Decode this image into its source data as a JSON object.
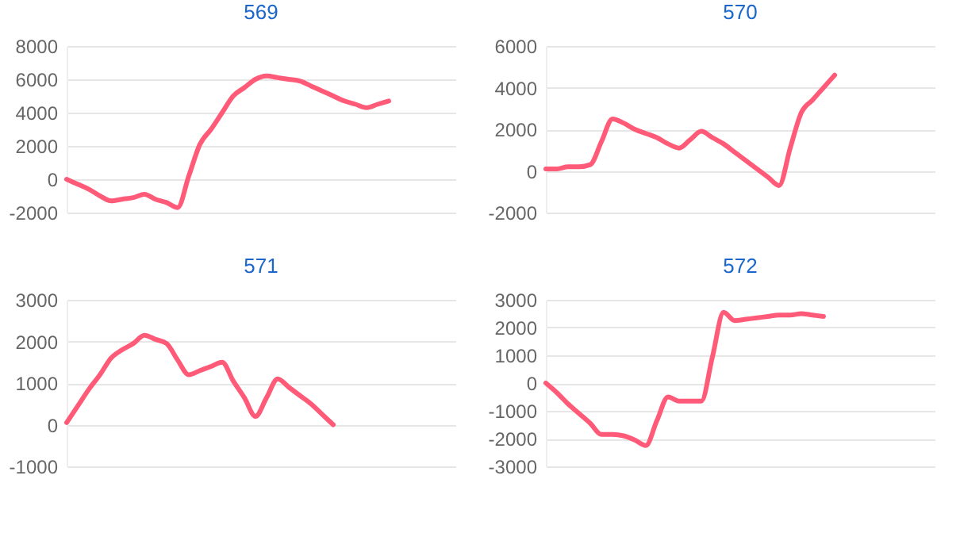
{
  "chart_data": [
    {
      "type": "line",
      "title": "569",
      "categories": [
        null,
        null,
        null,
        null,
        null,
        null,
        null,
        null,
        null,
        null,
        null,
        null,
        null,
        null,
        null,
        null,
        null,
        null,
        null,
        null,
        null,
        null,
        null,
        null,
        null,
        null,
        null,
        null,
        null,
        null,
        null,
        null,
        null,
        null,
        null,
        null
      ],
      "series": [
        {
          "color": "#ff5a78",
          "values": [
            0,
            -300,
            -600,
            -1000,
            -1300,
            -1200,
            -1100,
            -900,
            -1200,
            -1400,
            -1700,
            200,
            2100,
            3000,
            4000,
            5000,
            5500,
            6000,
            6200,
            6100,
            6000,
            5900,
            5600,
            5300,
            5000,
            4700,
            4500,
            4300,
            4500,
            4700,
            null,
            null,
            null,
            null,
            null,
            null
          ]
        }
      ],
      "ylim": [
        -2000,
        8000
      ],
      "yticks": [
        -2000,
        0,
        2000,
        4000,
        6000,
        8000
      ],
      "grid": "y",
      "tick_labels": "y"
    },
    {
      "type": "line",
      "title": "570",
      "categories": [
        null,
        null,
        null,
        null,
        null,
        null,
        null,
        null,
        null,
        null,
        null,
        null,
        null,
        null,
        null,
        null,
        null,
        null,
        null,
        null,
        null,
        null,
        null,
        null,
        null,
        null,
        null,
        null,
        null,
        null,
        null,
        null,
        null,
        null,
        null,
        null
      ],
      "series": [
        {
          "color": "#ff5a78",
          "values": [
            100,
            100,
            200,
            200,
            300,
            1400,
            2500,
            2300,
            2000,
            1800,
            1600,
            1300,
            1100,
            1500,
            1900,
            1600,
            1300,
            900,
            500,
            100,
            -300,
            -700,
            1100,
            2800,
            3400,
            4000,
            4600,
            null,
            null,
            null,
            null,
            null,
            null,
            null,
            null,
            null
          ]
        }
      ],
      "ylim": [
        -2000,
        6000
      ],
      "yticks": [
        -2000,
        0,
        2000,
        4000,
        6000
      ],
      "grid": "y",
      "tick_labels": "y"
    },
    {
      "type": "line",
      "title": "571",
      "categories": [
        null,
        null,
        null,
        null,
        null,
        null,
        null,
        null,
        null,
        null,
        null,
        null,
        null,
        null,
        null,
        null,
        null,
        null,
        null,
        null,
        null,
        null,
        null,
        null,
        null,
        null,
        null,
        null,
        null,
        null,
        null,
        null,
        null,
        null,
        null,
        null
      ],
      "series": [
        {
          "color": "#ff5a78",
          "values": [
            50,
            450,
            850,
            1200,
            1600,
            1800,
            1950,
            2150,
            2050,
            1950,
            1550,
            1200,
            1300,
            1400,
            1500,
            1050,
            650,
            200,
            650,
            1100,
            900,
            700,
            500,
            250,
            0,
            null,
            null,
            null,
            null,
            null,
            null,
            null,
            null,
            null,
            null,
            null
          ]
        }
      ],
      "ylim": [
        -1000,
        3000
      ],
      "yticks": [
        -1000,
        0,
        1000,
        2000,
        3000
      ],
      "grid": "y",
      "tick_labels": "y"
    },
    {
      "type": "line",
      "title": "572",
      "categories": [
        null,
        null,
        null,
        null,
        null,
        null,
        null,
        null,
        null,
        null,
        null,
        null,
        null,
        null,
        null,
        null,
        null,
        null,
        null,
        null,
        null,
        null,
        null,
        null,
        null,
        null,
        null,
        null,
        null,
        null,
        null,
        null,
        null,
        null,
        null,
        null
      ],
      "series": [
        {
          "color": "#ff5a78",
          "values": [
            0,
            -350,
            -750,
            -1100,
            -1450,
            -1850,
            -1850,
            -1900,
            -2050,
            -2250,
            -1350,
            -500,
            -650,
            -650,
            -650,
            950,
            2550,
            2250,
            2300,
            2350,
            2400,
            2450,
            2450,
            2500,
            2450,
            2400,
            null,
            null,
            null,
            null,
            null,
            null,
            null,
            null,
            null,
            null
          ]
        }
      ],
      "ylim": [
        -3000,
        3000
      ],
      "yticks": [
        -3000,
        -2000,
        -1000,
        0,
        1000,
        2000,
        3000
      ],
      "grid": "y",
      "tick_labels": "y"
    }
  ]
}
